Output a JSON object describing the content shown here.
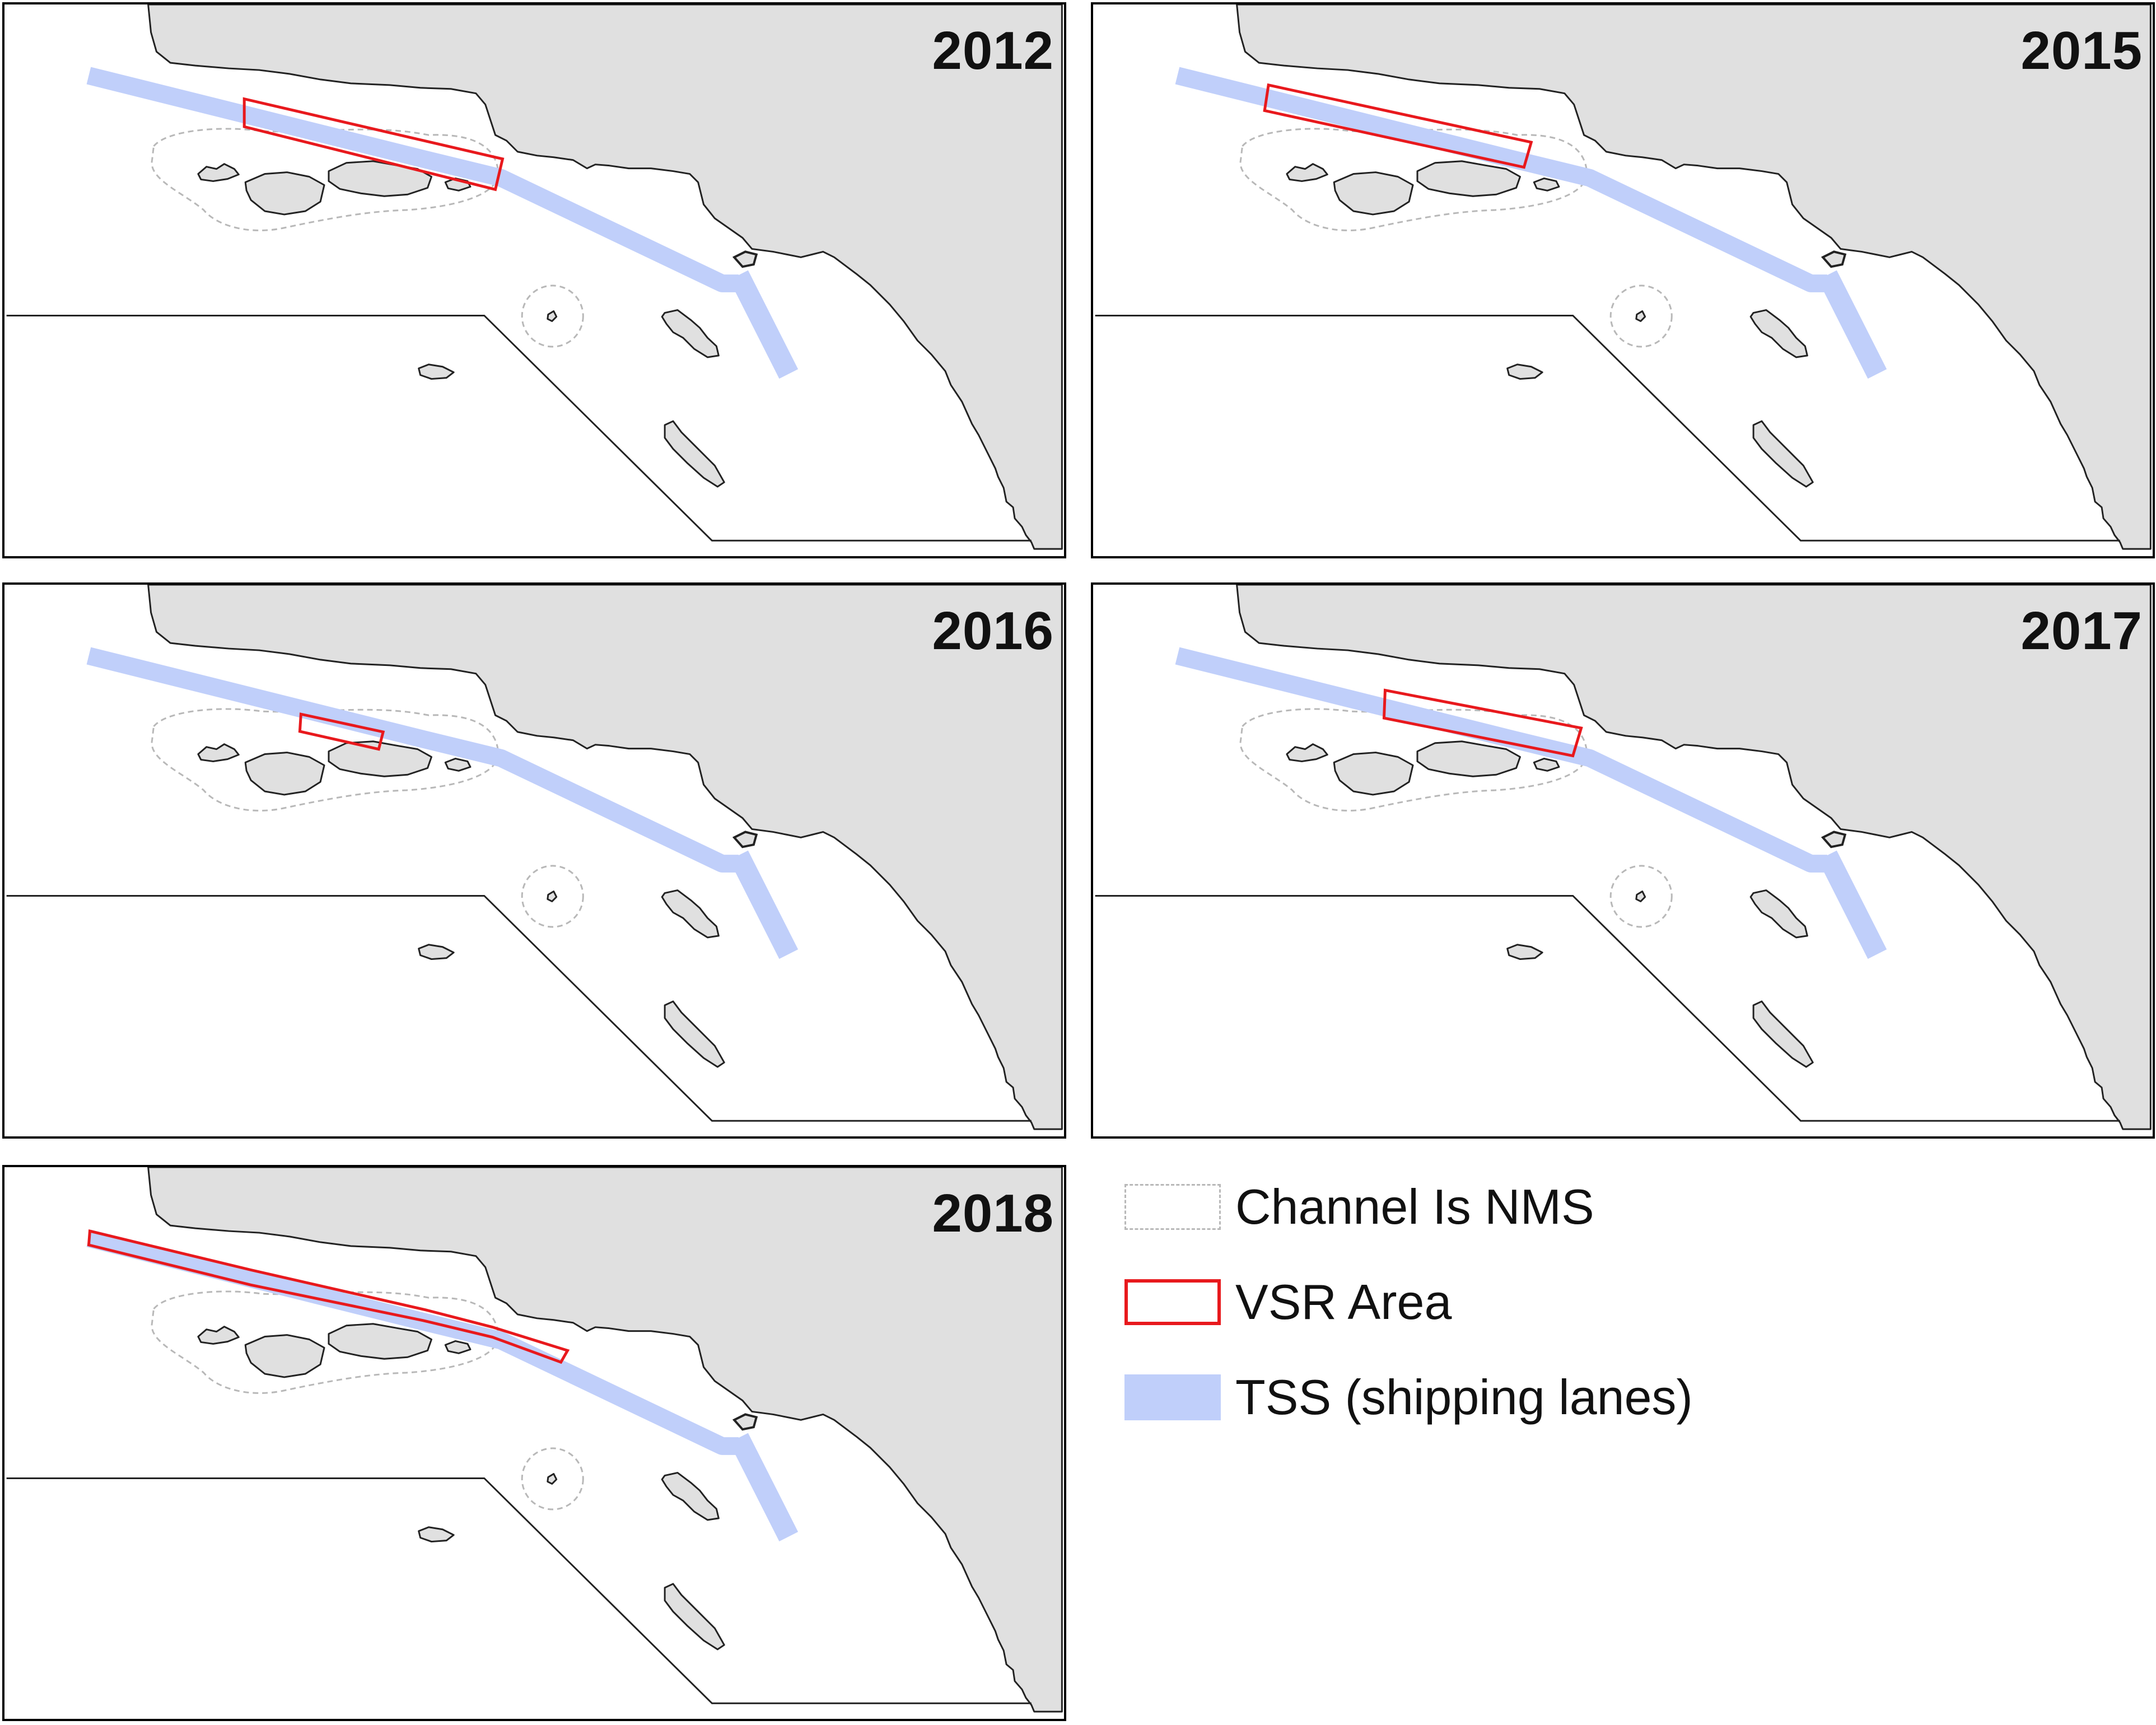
{
  "panels": [
    {
      "year": "2012",
      "vsr": "y2012"
    },
    {
      "year": "2015",
      "vsr": "y2015"
    },
    {
      "year": "2016",
      "vsr": "y2016"
    },
    {
      "year": "2017",
      "vsr": "y2017"
    },
    {
      "year": "2018",
      "vsr": "y2018"
    }
  ],
  "legend": {
    "items": [
      {
        "label": "Channel Is NMS",
        "symbol": "dashed-outline"
      },
      {
        "label": "VSR Area",
        "symbol": "red-outline"
      },
      {
        "label": "TSS (shipping lanes)",
        "symbol": "blue-fill"
      }
    ]
  },
  "colors": {
    "land": "#e0e0e0",
    "tss": "#c0cffa",
    "vsr_outline": "#e8191d",
    "sanctuary_outline": "#b8b8b8",
    "border": "#000000"
  }
}
